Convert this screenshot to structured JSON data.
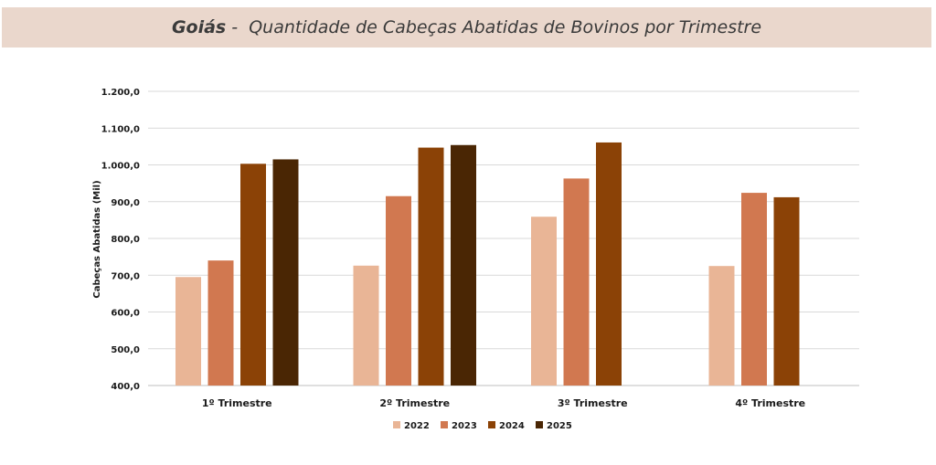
{
  "header": {
    "state": "Goiás",
    "separator": " -  ",
    "title": "Quantidade de Cabeças Abatidas de Bovinos por Trimestre"
  },
  "chart_data": {
    "type": "bar",
    "title": "Goiás -  Quantidade de Cabeças Abatidas de Bovinos por Trimestre",
    "xlabel": "",
    "ylabel": "Cabeças Abatidas (Mil)",
    "ylim": [
      400,
      1200
    ],
    "yticks": [
      400,
      500,
      600,
      700,
      800,
      900,
      1000,
      1100,
      1200
    ],
    "ytick_labels": [
      "400,0",
      "500,0",
      "600,0",
      "700,0",
      "800,0",
      "900,0",
      "1.000,0",
      "1.100,0",
      "1.200,0"
    ],
    "grid": true,
    "legend_position": "bottom",
    "categories": [
      "1º Trimestre",
      "2º Trimestre",
      "3º Trimestre",
      "4º Trimestre"
    ],
    "series": [
      {
        "name": "2022",
        "color": "#e9b596",
        "values": [
          695,
          726,
          859,
          725
        ]
      },
      {
        "name": "2023",
        "color": "#d17850",
        "values": [
          740,
          915,
          963,
          924
        ]
      },
      {
        "name": "2024",
        "color": "#8b4206",
        "values": [
          1003,
          1047,
          1061,
          912
        ]
      },
      {
        "name": "2025",
        "color": "#4a2604",
        "values": [
          1015,
          1054,
          null,
          null
        ]
      }
    ]
  }
}
